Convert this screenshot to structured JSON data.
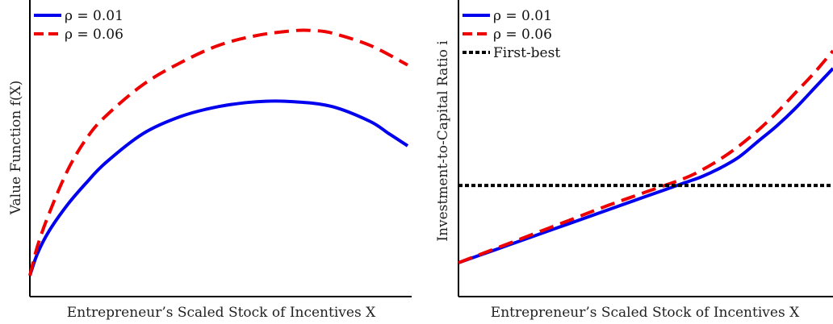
{
  "chart_data": [
    {
      "type": "line",
      "title": "",
      "xlabel": "Entrepreneur’s Scaled Stock of Incentives X",
      "ylabel": "Value Function f(X)",
      "xlim": [
        0,
        1
      ],
      "ylim": [
        0,
        1
      ],
      "xticks": false,
      "yticks": false,
      "grid": false,
      "legend": "top-left",
      "series": [
        {
          "name": "ρ = 0.01",
          "color": "#0000ee",
          "style": "solid",
          "x": [
            0,
            0.02,
            0.05,
            0.1,
            0.15,
            0.2,
            0.3,
            0.4,
            0.5,
            0.6,
            0.7,
            0.8,
            0.9,
            0.95,
            1.0
          ],
          "y": [
            0.0,
            0.09,
            0.18,
            0.29,
            0.38,
            0.46,
            0.58,
            0.65,
            0.69,
            0.71,
            0.71,
            0.69,
            0.63,
            0.58,
            0.53
          ]
        },
        {
          "name": "ρ = 0.06",
          "color": "#ee0000",
          "style": "dashed",
          "x": [
            0,
            0.02,
            0.05,
            0.1,
            0.15,
            0.2,
            0.3,
            0.4,
            0.5,
            0.6,
            0.7,
            0.75,
            0.8,
            0.9,
            1.0
          ],
          "y": [
            0.0,
            0.12,
            0.25,
            0.43,
            0.56,
            0.65,
            0.78,
            0.87,
            0.94,
            0.98,
            1.0,
            1.0,
            0.99,
            0.94,
            0.86
          ]
        }
      ]
    },
    {
      "type": "line",
      "title": "",
      "xlabel": "Entrepreneur’s Scaled Stock of Incentives X",
      "ylabel": "Investment-to-Capital Ratio i",
      "xlim": [
        0,
        1
      ],
      "ylim": [
        0,
        1
      ],
      "xticks": false,
      "yticks": false,
      "grid": false,
      "legend": "top-left",
      "series": [
        {
          "name": "ρ = 0.01",
          "color": "#0000ee",
          "style": "solid",
          "x": [
            0,
            0.1,
            0.2,
            0.3,
            0.4,
            0.5,
            0.6,
            0.65,
            0.7,
            0.75,
            0.8,
            0.85,
            0.9,
            0.95,
            1.0
          ],
          "y": [
            0.0,
            0.06,
            0.12,
            0.18,
            0.24,
            0.3,
            0.36,
            0.39,
            0.43,
            0.48,
            0.55,
            0.62,
            0.7,
            0.79,
            0.88
          ]
        },
        {
          "name": "ρ = 0.06",
          "color": "#ee0000",
          "style": "dashed",
          "x": [
            0,
            0.1,
            0.2,
            0.3,
            0.4,
            0.5,
            0.6,
            0.65,
            0.7,
            0.75,
            0.8,
            0.85,
            0.9,
            0.95,
            1.0
          ],
          "y": [
            0.0,
            0.065,
            0.13,
            0.195,
            0.26,
            0.32,
            0.38,
            0.42,
            0.47,
            0.53,
            0.6,
            0.68,
            0.77,
            0.86,
            0.96
          ]
        },
        {
          "name": "First-best",
          "color": "#000000",
          "style": "dotted",
          "x": [
            0,
            1.0
          ],
          "y": [
            0.35,
            0.35
          ]
        }
      ]
    }
  ],
  "colors": {
    "series_blue": "#0000ee",
    "series_red": "#ee0000",
    "first_best": "#000000",
    "axis": "#000000"
  }
}
